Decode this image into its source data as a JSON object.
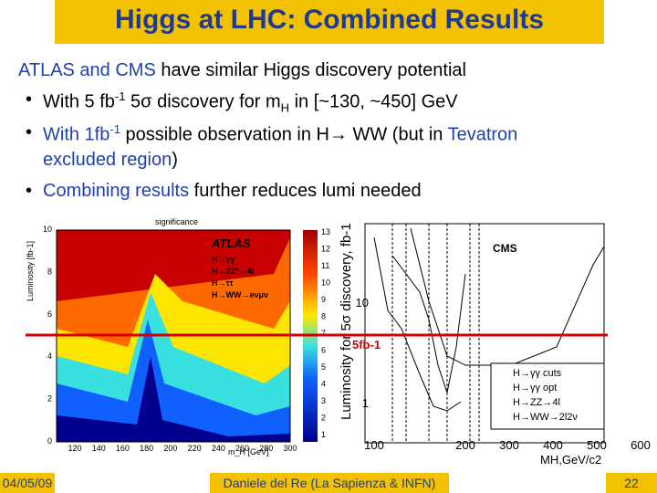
{
  "header": {
    "title": "Higgs at LHC: Combined Results"
  },
  "bullets": [
    [
      "ATLAS and CMS",
      " have similar Higgs discovery potential"
    ],
    [
      "With 5 fb",
      "-1",
      " 5σ discovery for m",
      "H",
      " in [~130, ~450] GeV"
    ],
    [
      "With 1fb",
      "-1",
      " possible observation in H→ WW (but in ",
      "Tevatron",
      "excluded region",
      ")"
    ],
    [
      "Combining results",
      " further reduces lumi needed"
    ]
  ],
  "atlas_plot": {
    "title": "significance",
    "label": "ATLAS",
    "legend": [
      "H→γγ",
      "H→ZZ*→4l",
      "H→ττ",
      "H→WW→eνμν"
    ],
    "ylabel": "Luminosity [fb-1]",
    "xlabel": "m_H [GeV]",
    "xticks": [
      "120",
      "140",
      "160",
      "180",
      "200",
      "220",
      "240",
      "260",
      "280",
      "300"
    ],
    "yticks": [
      "0",
      "2",
      "4",
      "6",
      "8",
      "10"
    ],
    "colorbar": [
      "1",
      "2",
      "3",
      "4",
      "5",
      "6",
      "7",
      "8",
      "9",
      "10",
      "11",
      "12",
      "13"
    ]
  },
  "cms_plot": {
    "label": "CMS",
    "ylabel": "Luminosity for 5σ discovery, fb-1",
    "xlabel": "MH,GeV/c2",
    "xticks": [
      "100",
      "200",
      "300",
      "400",
      "500",
      "600"
    ],
    "yticks": [
      "10",
      "1"
    ],
    "legend": [
      "H→γγ cuts",
      "H→γγ opt",
      "H→ZZ→4l",
      "H→WW→2l2ν"
    ]
  },
  "line_label": "5fb-1",
  "footer": {
    "date": "04/05/09",
    "author": "Daniele del Re (La Sapienza & INFN)",
    "page": "22"
  }
}
